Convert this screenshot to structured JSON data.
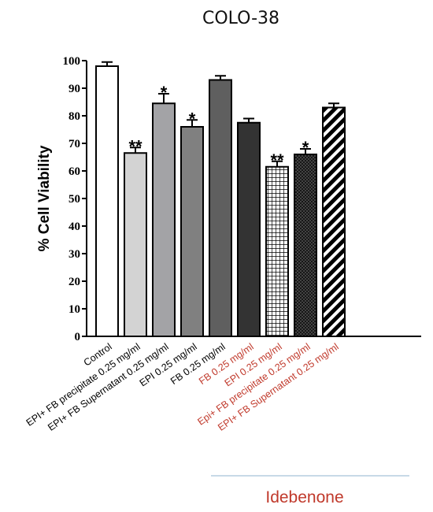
{
  "chart_data": {
    "type": "bar",
    "title": "COLO-38",
    "xlabel": "",
    "ylabel": "% Cell Viability",
    "ylim": [
      0,
      100
    ],
    "yticks": [
      0,
      10,
      20,
      30,
      40,
      50,
      60,
      70,
      80,
      90,
      100
    ],
    "grid": false,
    "categories": [
      "Control",
      "EPI+ FB precipitate  0.25 mg/ml",
      "EPI+ FB Supernatant 0.25 mg/ml",
      "EPI 0.25 mg/ml",
      "FB 0.25 mg/ml",
      "FB 0.25 mg/ml",
      "EPI 0.25 mg/ml",
      "Epi+ FB precipitate 0.25 mg/ml",
      "EPI+ FB  Supernatant 0.25 mg/ml"
    ],
    "values": [
      98,
      66.5,
      84.5,
      76,
      93,
      77.5,
      61.5,
      66,
      83
    ],
    "errors": [
      1.5,
      2,
      3.5,
      2.5,
      1.5,
      1.5,
      2,
      2,
      1.5
    ],
    "significance": [
      "",
      "**",
      "*",
      "*",
      "",
      "",
      "**",
      "*",
      ""
    ],
    "bar_fills": [
      "#ffffff",
      "#d3d3d3",
      "#a3a3a6",
      "#808080",
      "#5f5f5f",
      "#333333",
      "grid-pattern",
      "crosshatch-pattern",
      "diagonal-stripe-pattern"
    ],
    "label_colors": [
      "#000000",
      "#000000",
      "#000000",
      "#000000",
      "#000000",
      "#c0392b",
      "#c0392b",
      "#c0392b",
      "#c0392b"
    ],
    "group_label": "Idebenone",
    "group_label_color": "#c0392b",
    "group_line_color": "#8fb3cf"
  }
}
